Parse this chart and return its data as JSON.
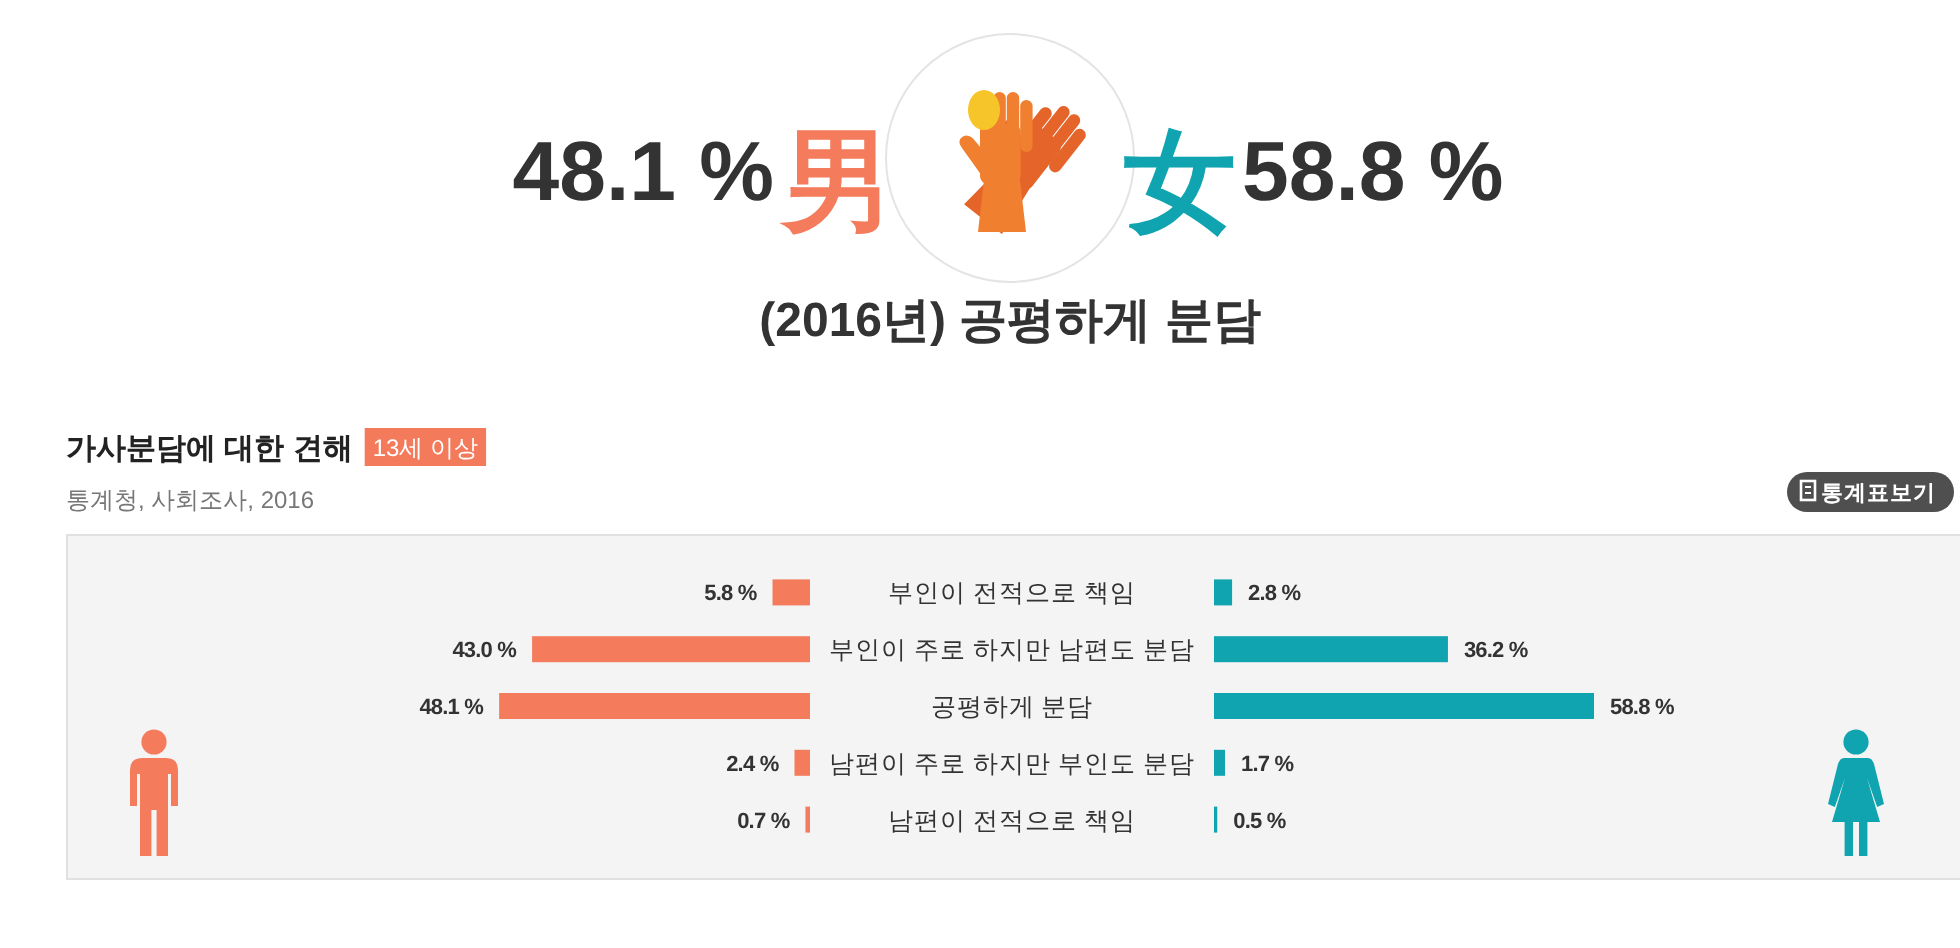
{
  "chart_data": [
    {
      "type": "bar",
      "orientation": "horizontal",
      "title": "가사분담에 대한 견해",
      "subtitle": "13세 이상",
      "annotations": [
        "48.1 %",
        "(2016년) 공평하게 분담",
        "통계청, 사회조사, 2016",
        "통계표보기"
      ],
      "categories": [
        "부인이 전적으로 책임",
        "부인이 주로 하지만 남편도 분담",
        "공평하게 분담",
        "남편이 주로 하지만 부인도 분담",
        "남편이 전적으로 책임"
      ],
      "series": [
        {
          "name": "男",
          "color": "#f47b5c",
          "values": [
            5.8,
            43.0,
            48.1,
            2.4,
            0.7
          ],
          "value_labels": [
            "5.8 %",
            "43.0 %",
            "48.1 %",
            "2.4 %",
            "0.7 %"
          ]
        }
      ],
      "tick_labels": "y"
    },
    {
      "type": "bar",
      "orientation": "horizontal",
      "annotations": [
        "58.8 %"
      ],
      "categories": [
        null,
        null,
        null,
        null,
        null
      ],
      "series": [
        {
          "name": "女",
          "color": "#10a4b0",
          "values": [
            2.8,
            36.2,
            58.8,
            1.7,
            0.5
          ],
          "value_labels": [
            "2.8 %",
            "36.2 %",
            "58.8 %",
            "1.7 %",
            "0.5 %"
          ]
        }
      ]
    }
  ]
}
